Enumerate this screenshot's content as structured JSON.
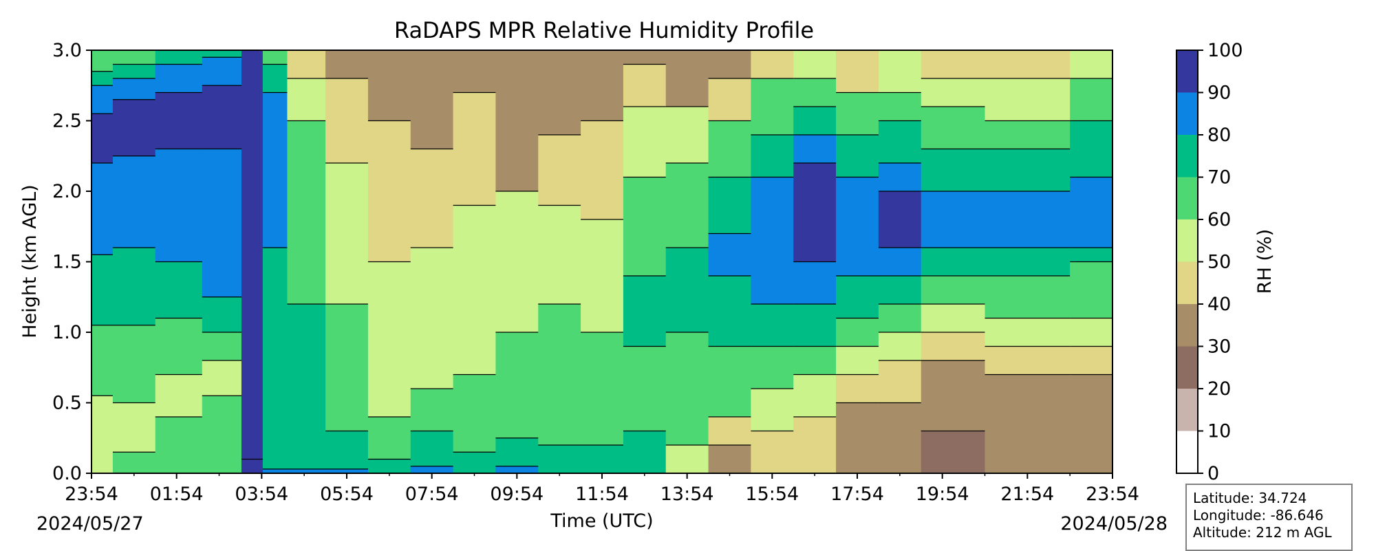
{
  "chart_data": {
    "type": "heatmap",
    "subtype": "filled-contour",
    "title": "RaDAPS MPR Relative Humidity Profile",
    "xlabel": "Time (UTC)",
    "ylabel": "Height (km AGL)",
    "x_tick_labels": [
      "23:54",
      "01:54",
      "03:54",
      "05:54",
      "07:54",
      "09:54",
      "11:54",
      "13:54",
      "15:54",
      "17:54",
      "19:54",
      "21:54",
      "23:54"
    ],
    "x_tick_hours": [
      0,
      2,
      4,
      6,
      8,
      10,
      12,
      14,
      16,
      18,
      20,
      22,
      24
    ],
    "start_date": "2024/05/27",
    "end_date": "2024/05/28",
    "y_ticks": [
      0.0,
      0.5,
      1.0,
      1.5,
      2.0,
      2.5,
      3.0
    ],
    "ylim": [
      0,
      3.0
    ],
    "colorbar": {
      "label": "RH (%)",
      "ticks": [
        0,
        10,
        20,
        30,
        40,
        50,
        60,
        70,
        80,
        90,
        100
      ],
      "levels": [
        0,
        10,
        20,
        30,
        40,
        50,
        60,
        70,
        80,
        90,
        100
      ],
      "colors": [
        "#ffffff",
        "#c9b3ad",
        "#8d6c61",
        "#a88e68",
        "#e0d686",
        "#cbf38b",
        "#4ed873",
        "#00bd86",
        "#0c84e3",
        "#34389e"
      ]
    },
    "grid": false,
    "columns": [
      {
        "t": 0.0,
        "bands": [
          [
            0,
            5
          ],
          [
            0.55,
            6
          ],
          [
            1.05,
            7
          ],
          [
            1.55,
            8
          ],
          [
            2.2,
            9
          ],
          [
            2.55,
            8
          ],
          [
            2.75,
            7
          ],
          [
            2.85,
            6
          ]
        ]
      },
      {
        "t": 1.0,
        "bands": [
          [
            0,
            6
          ],
          [
            0.15,
            5
          ],
          [
            0.5,
            6
          ],
          [
            1.05,
            7
          ],
          [
            1.6,
            8
          ],
          [
            2.25,
            9
          ],
          [
            2.65,
            8
          ],
          [
            2.8,
            7
          ],
          [
            2.9,
            6
          ]
        ]
      },
      {
        "t": 2.0,
        "bands": [
          [
            0,
            6
          ],
          [
            0.4,
            5
          ],
          [
            0.7,
            6
          ],
          [
            1.1,
            7
          ],
          [
            1.5,
            8
          ],
          [
            2.3,
            9
          ],
          [
            2.7,
            8
          ],
          [
            2.9,
            7
          ]
        ]
      },
      {
        "t": 3.2,
        "bands": [
          [
            0,
            6
          ],
          [
            0.55,
            5
          ],
          [
            0.8,
            6
          ],
          [
            1.0,
            7
          ],
          [
            1.25,
            8
          ],
          [
            2.3,
            9
          ],
          [
            2.75,
            8
          ],
          [
            2.95,
            7
          ]
        ]
      },
      {
        "t": 3.85,
        "bands": [
          [
            0,
            9
          ],
          [
            0.1,
            9
          ],
          [
            3.0,
            9
          ]
        ]
      },
      {
        "t": 4.2,
        "bands": [
          [
            0,
            8
          ],
          [
            0.03,
            7
          ],
          [
            1.6,
            8
          ],
          [
            2.7,
            7
          ],
          [
            2.9,
            6
          ]
        ]
      },
      {
        "t": 5.0,
        "bands": [
          [
            0,
            8
          ],
          [
            0.03,
            7
          ],
          [
            1.2,
            6
          ],
          [
            2.5,
            5
          ],
          [
            2.8,
            4
          ]
        ]
      },
      {
        "t": 6.0,
        "bands": [
          [
            0,
            8
          ],
          [
            0.03,
            7
          ],
          [
            0.3,
            6
          ],
          [
            1.2,
            5
          ],
          [
            2.2,
            4
          ],
          [
            2.8,
            3
          ]
        ]
      },
      {
        "t": 7.0,
        "bands": [
          [
            0,
            7
          ],
          [
            0.1,
            6
          ],
          [
            0.4,
            5
          ],
          [
            1.5,
            4
          ],
          [
            2.5,
            3
          ]
        ]
      },
      {
        "t": 8.0,
        "bands": [
          [
            0,
            8
          ],
          [
            0.05,
            7
          ],
          [
            0.3,
            6
          ],
          [
            0.6,
            5
          ],
          [
            1.6,
            4
          ],
          [
            2.3,
            3
          ]
        ]
      },
      {
        "t": 9.0,
        "bands": [
          [
            0,
            7
          ],
          [
            0.15,
            6
          ],
          [
            0.7,
            5
          ],
          [
            1.9,
            4
          ],
          [
            2.7,
            3
          ]
        ]
      },
      {
        "t": 10.0,
        "bands": [
          [
            0,
            8
          ],
          [
            0.05,
            7
          ],
          [
            0.25,
            6
          ],
          [
            1.0,
            5
          ],
          [
            2.0,
            3
          ]
        ]
      },
      {
        "t": 11.0,
        "bands": [
          [
            0,
            7
          ],
          [
            0.2,
            6
          ],
          [
            1.2,
            5
          ],
          [
            1.9,
            4
          ],
          [
            2.4,
            3
          ]
        ]
      },
      {
        "t": 12.0,
        "bands": [
          [
            0,
            7
          ],
          [
            0.2,
            6
          ],
          [
            1.0,
            5
          ],
          [
            1.8,
            4
          ],
          [
            2.5,
            3
          ]
        ]
      },
      {
        "t": 13.0,
        "bands": [
          [
            0,
            7
          ],
          [
            0.3,
            6
          ],
          [
            0.9,
            7
          ],
          [
            1.4,
            6
          ],
          [
            2.1,
            5
          ],
          [
            2.6,
            4
          ],
          [
            2.9,
            3
          ]
        ]
      },
      {
        "t": 14.0,
        "bands": [
          [
            0,
            5
          ],
          [
            0.2,
            6
          ],
          [
            1.0,
            7
          ],
          [
            1.6,
            6
          ],
          [
            2.2,
            5
          ],
          [
            2.6,
            3
          ]
        ]
      },
      {
        "t": 15.0,
        "bands": [
          [
            0,
            3
          ],
          [
            0.2,
            4
          ],
          [
            0.4,
            6
          ],
          [
            0.9,
            7
          ],
          [
            1.4,
            8
          ],
          [
            1.7,
            7
          ],
          [
            2.1,
            6
          ],
          [
            2.5,
            4
          ],
          [
            2.8,
            3
          ]
        ]
      },
      {
        "t": 16.0,
        "bands": [
          [
            0,
            4
          ],
          [
            0.3,
            5
          ],
          [
            0.6,
            6
          ],
          [
            0.9,
            7
          ],
          [
            1.2,
            8
          ],
          [
            2.1,
            7
          ],
          [
            2.4,
            6
          ],
          [
            2.8,
            4
          ]
        ]
      },
      {
        "t": 17.0,
        "bands": [
          [
            0,
            4
          ],
          [
            0.4,
            5
          ],
          [
            0.7,
            6
          ],
          [
            0.9,
            7
          ],
          [
            1.2,
            8
          ],
          [
            1.5,
            9
          ],
          [
            2.2,
            8
          ],
          [
            2.4,
            7
          ],
          [
            2.6,
            6
          ],
          [
            2.8,
            5
          ]
        ]
      },
      {
        "t": 18.0,
        "bands": [
          [
            0,
            3
          ],
          [
            0.5,
            4
          ],
          [
            0.7,
            5
          ],
          [
            0.9,
            6
          ],
          [
            1.1,
            7
          ],
          [
            1.4,
            8
          ],
          [
            2.1,
            7
          ],
          [
            2.4,
            6
          ],
          [
            2.7,
            4
          ]
        ]
      },
      {
        "t": 19.0,
        "bands": [
          [
            0,
            3
          ],
          [
            0.5,
            4
          ],
          [
            0.8,
            5
          ],
          [
            1.0,
            6
          ],
          [
            1.2,
            7
          ],
          [
            1.4,
            8
          ],
          [
            1.6,
            9
          ],
          [
            2.0,
            8
          ],
          [
            2.2,
            7
          ],
          [
            2.5,
            6
          ],
          [
            2.7,
            5
          ]
        ]
      },
      {
        "t": 20.0,
        "bands": [
          [
            0,
            2
          ],
          [
            0.3,
            3
          ],
          [
            0.8,
            4
          ],
          [
            1.0,
            5
          ],
          [
            1.2,
            6
          ],
          [
            1.4,
            7
          ],
          [
            1.6,
            8
          ],
          [
            2.0,
            7
          ],
          [
            2.3,
            6
          ],
          [
            2.6,
            5
          ],
          [
            2.8,
            4
          ]
        ]
      },
      {
        "t": 22.0,
        "bands": [
          [
            0,
            3
          ],
          [
            0.7,
            4
          ],
          [
            0.9,
            5
          ],
          [
            1.1,
            6
          ],
          [
            1.4,
            7
          ],
          [
            1.6,
            8
          ],
          [
            2.0,
            7
          ],
          [
            2.3,
            6
          ],
          [
            2.5,
            5
          ],
          [
            2.8,
            4
          ]
        ]
      },
      {
        "t": 24.0,
        "bands": [
          [
            0,
            3
          ],
          [
            0.7,
            4
          ],
          [
            0.9,
            5
          ],
          [
            1.1,
            6
          ],
          [
            1.5,
            7
          ],
          [
            1.6,
            8
          ],
          [
            2.1,
            7
          ],
          [
            2.5,
            6
          ],
          [
            2.8,
            5
          ]
        ]
      }
    ]
  },
  "location": {
    "latitude": "Latitude: 34.724",
    "longitude": "Longitude: -86.646",
    "altitude": "Altitude: 212 m AGL"
  }
}
